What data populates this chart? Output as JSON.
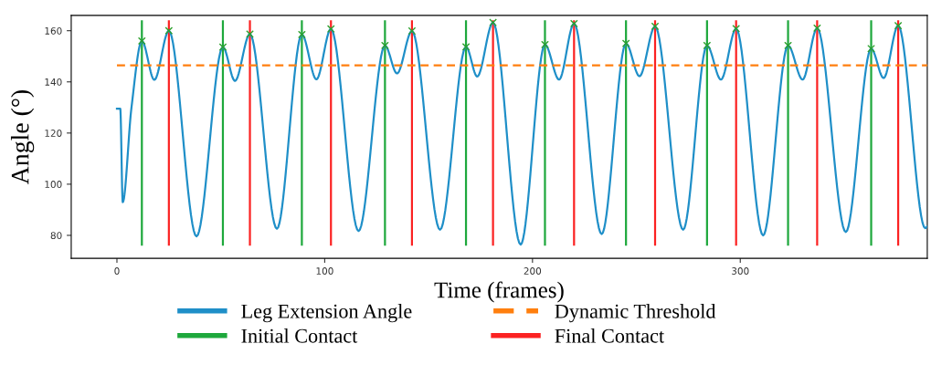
{
  "chart_data": {
    "type": "line",
    "xlabel": "Time (frames)",
    "ylabel": "Angle (°)",
    "xlim": [
      -22,
      390
    ],
    "ylim": [
      71,
      166
    ],
    "xticks": [
      0,
      100,
      200,
      300
    ],
    "yticks": [
      80,
      100,
      120,
      140,
      160
    ],
    "grid": false,
    "legend": "bottom",
    "series": [
      {
        "name": "Leg Extension Angle",
        "color": "#1f8fc8",
        "x": [
          0,
          1.6,
          2.8,
          7,
          12,
          18,
          25,
          38.3,
          51,
          56.8,
          64,
          77,
          89,
          96,
          103,
          116.3,
          129,
          134.8,
          142,
          155.5,
          168,
          173.4,
          181,
          194.3,
          206,
          212.8,
          220,
          233.3,
          245,
          251.5,
          259,
          272.5,
          284,
          290.7,
          298,
          311,
          323,
          330,
          337,
          350.8,
          363,
          369,
          376,
          389,
          390
        ],
        "values": [
          129.5,
          129.5,
          93,
          130,
          156,
          140.8,
          160,
          79.6,
          153.6,
          140.4,
          158.7,
          82.6,
          158.5,
          141,
          160.7,
          81.7,
          154.2,
          143.3,
          159.9,
          82.2,
          153.7,
          142.1,
          163.2,
          76.4,
          154.6,
          140.9,
          162.8,
          80.5,
          155,
          142.2,
          161.7,
          82.2,
          154.2,
          140.9,
          160.8,
          80,
          154.2,
          140.9,
          161,
          81.3,
          153,
          141.5,
          162,
          82.8,
          83.5
        ]
      },
      {
        "name": "Dynamic Threshold",
        "line_style": "dashed",
        "color": "#ff7f0e",
        "x": [
          0,
          390
        ],
        "values": [
          146.5,
          146.5
        ]
      },
      {
        "name": "Initial Contact",
        "color": "#1ea83c",
        "x": [
          12,
          12,
          51,
          51,
          89,
          89,
          129,
          129,
          168,
          168,
          206,
          206,
          245,
          245,
          284,
          284,
          323,
          323,
          363,
          363
        ],
        "values": [
          76.4,
          163.7,
          76.4,
          163.7,
          76.4,
          163.7,
          76.4,
          163.7,
          76.4,
          163.7,
          76.4,
          163.7,
          76.4,
          163.7,
          76.4,
          163.7,
          76.4,
          163.7,
          76.4,
          163.7
        ]
      },
      {
        "name": "Final Contact",
        "color": "#fb2222",
        "x": [
          25,
          25,
          64,
          64,
          103,
          103,
          142,
          142,
          181,
          181,
          220,
          220,
          259,
          259,
          298,
          298,
          337,
          337,
          376,
          376
        ],
        "values": [
          76.4,
          163.7,
          76.4,
          163.7,
          76.4,
          163.7,
          76.4,
          163.7,
          76.4,
          163.7,
          76.4,
          163.7,
          76.4,
          163.7,
          76.4,
          163.7,
          76.4,
          163.7,
          76.4,
          163.7
        ]
      },
      {
        "type": "scatter",
        "marker": "cross",
        "color": "#2ca02c",
        "x": [
          12,
          25,
          51,
          64,
          89,
          103,
          129,
          142,
          168,
          181,
          206,
          220,
          245,
          259,
          284,
          298,
          323,
          337,
          363,
          376
        ],
        "values": [
          156,
          160,
          153.6,
          158.7,
          158.5,
          160.7,
          154.2,
          159.9,
          153.7,
          163.2,
          154.6,
          162.8,
          155,
          161.7,
          154.2,
          160.8,
          154.2,
          161,
          153,
          162
        ]
      }
    ]
  }
}
